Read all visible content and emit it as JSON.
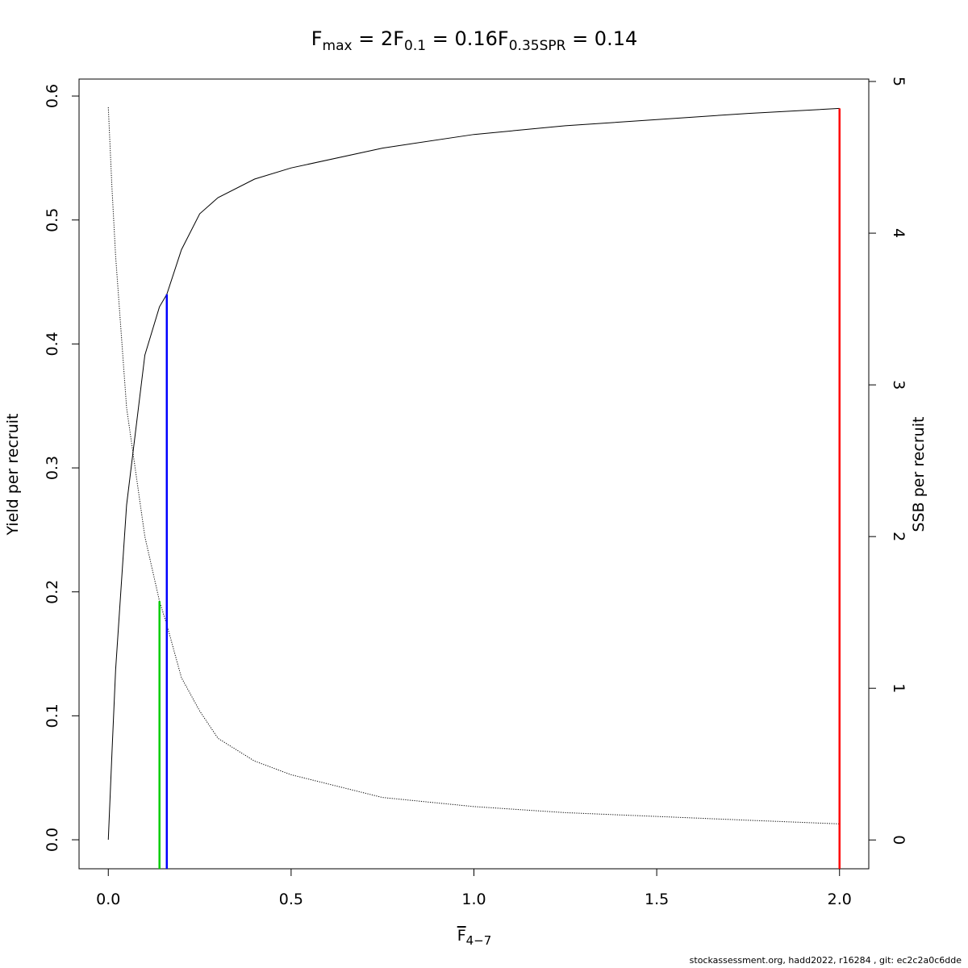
{
  "chart_data": {
    "type": "line",
    "title_parts": [
      {
        "main": "F",
        "sub": "max",
        "rest": " = 2"
      },
      {
        "main": "F",
        "sub": "0.1",
        "rest": " = 0.16"
      },
      {
        "main": "F",
        "sub": "0.35SPR",
        "rest": " = 0.14"
      }
    ],
    "x_label": {
      "main": "F",
      "sub": "4−7"
    },
    "y_label": "Yield per recruit",
    "y2_label": "SSB per recruit",
    "footer": "stockassessment.org, hadd2022, r16284 , git: ec2c2a0c6dde",
    "x": [
      0,
      0.01,
      0.02,
      0.05,
      0.1,
      0.14,
      0.16,
      0.2,
      0.25,
      0.3,
      0.4,
      0.5,
      0.75,
      1,
      1.25,
      1.5,
      1.75,
      2
    ],
    "series": [
      {
        "name": "Yield per recruit",
        "color": "#000000",
        "style": "solid",
        "values": [
          0,
          0.07,
          0.137,
          0.27,
          0.391,
          0.43,
          0.44,
          0.476,
          0.505,
          0.518,
          0.533,
          0.542,
          0.558,
          0.569,
          0.576,
          0.581,
          0.586,
          0.59
        ]
      },
      {
        "name": "SSB per recruit",
        "color": "#000000",
        "style": "dotted",
        "axis": "y2",
        "values": [
          4.83,
          4.3,
          3.85,
          2.85,
          2.0,
          1.574,
          1.42,
          1.07,
          0.85,
          0.67,
          0.52,
          0.43,
          0.28,
          0.22,
          0.18,
          0.155,
          0.13,
          0.106
        ]
      }
    ],
    "reference_lines": [
      {
        "x": 2,
        "y": 0.59,
        "color": "#ff0000"
      },
      {
        "x": 0.16,
        "y": 0.44,
        "color": "#0000ff"
      },
      {
        "x": 0.14,
        "y": 1.574,
        "axis": "y2",
        "color": "#00cd00"
      }
    ],
    "xlim": [
      -0.08,
      2.08
    ],
    "xticks": [
      {
        "value": 0,
        "label": "0.0"
      },
      0.5,
      {
        "value": 1,
        "label": "1.0"
      },
      1.5,
      {
        "value": 2,
        "label": "2.0"
      }
    ],
    "ylim": [
      -0.0234,
      0.6137
    ],
    "yticks": [
      {
        "value": 0,
        "label": "0.0"
      },
      0.1,
      0.2,
      0.3,
      0.4,
      0.5,
      0.6
    ],
    "y2lim": [
      -0.19,
      5.016
    ],
    "y2ticks": [
      0,
      1,
      2,
      3,
      4,
      5
    ]
  }
}
